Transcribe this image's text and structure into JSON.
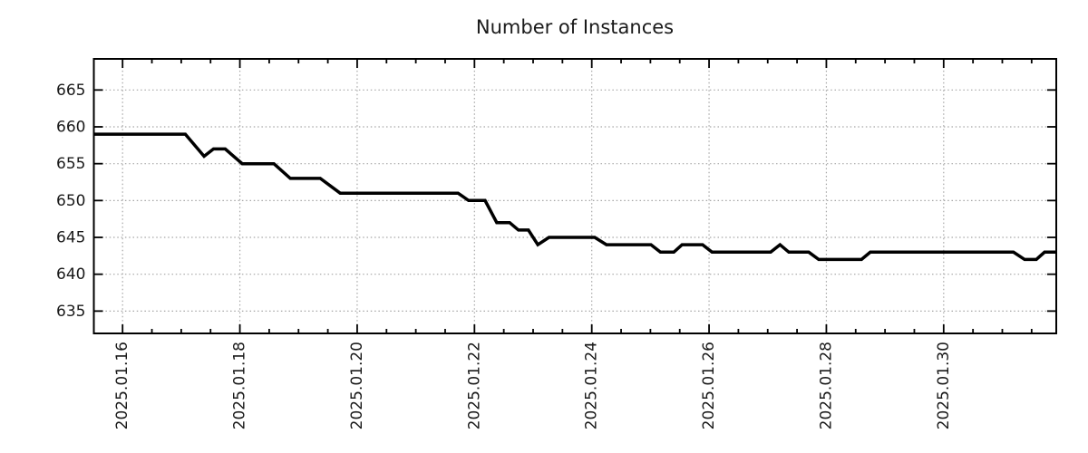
{
  "page": {
    "background": "#ffffff"
  },
  "style": {
    "background": "#ffffff",
    "axis_color": "#000000",
    "grid_color": "#a6a6a6",
    "text_color": "#1a1a1a",
    "line_color": "#000000"
  },
  "chart_data": {
    "type": "line",
    "title": "Number of Instances",
    "xlabel": "",
    "ylabel": "",
    "x_unit": "day of January 2025 (fractional, from axis dates)",
    "xlim": [
      15.51,
      31.92
    ],
    "ylim": [
      631.97,
      669.22
    ],
    "x_major_ticks": [
      16,
      18,
      20,
      22,
      24,
      26,
      28,
      30
    ],
    "x_major_tick_labels": [
      "2025.01.16",
      "2025.01.18",
      "2025.01.20",
      "2025.01.22",
      "2025.01.24",
      "2025.01.26",
      "2025.01.28",
      "2025.01.30"
    ],
    "x_minor_tick_step": 0.5,
    "y_ticks": [
      635,
      640,
      645,
      650,
      655,
      660,
      665
    ],
    "y_tick_labels": [
      "635",
      "640",
      "645",
      "650",
      "655",
      "660",
      "665"
    ],
    "grid": "dotted",
    "legend": "none",
    "series": [
      {
        "name": "instances",
        "color": "#000000",
        "points": [
          [
            15.51,
            659
          ],
          [
            17.07,
            659
          ],
          [
            17.39,
            656
          ],
          [
            17.55,
            657
          ],
          [
            17.75,
            657
          ],
          [
            18.04,
            655
          ],
          [
            18.58,
            655
          ],
          [
            18.86,
            653
          ],
          [
            19.37,
            653
          ],
          [
            19.71,
            651
          ],
          [
            21.72,
            651
          ],
          [
            21.9,
            650
          ],
          [
            22.18,
            650
          ],
          [
            22.38,
            647
          ],
          [
            22.6,
            647
          ],
          [
            22.75,
            646
          ],
          [
            22.92,
            646
          ],
          [
            23.08,
            644
          ],
          [
            23.27,
            645
          ],
          [
            24.05,
            645
          ],
          [
            24.25,
            644
          ],
          [
            25.01,
            644
          ],
          [
            25.17,
            643
          ],
          [
            25.4,
            643
          ],
          [
            25.54,
            644
          ],
          [
            25.89,
            644
          ],
          [
            26.05,
            643
          ],
          [
            27.05,
            643
          ],
          [
            27.21,
            644
          ],
          [
            27.36,
            643
          ],
          [
            27.7,
            643
          ],
          [
            27.87,
            642
          ],
          [
            28.6,
            642
          ],
          [
            28.75,
            643
          ],
          [
            31.19,
            643
          ],
          [
            31.38,
            642
          ],
          [
            31.58,
            642
          ],
          [
            31.72,
            643
          ],
          [
            31.92,
            643
          ]
        ]
      }
    ]
  }
}
